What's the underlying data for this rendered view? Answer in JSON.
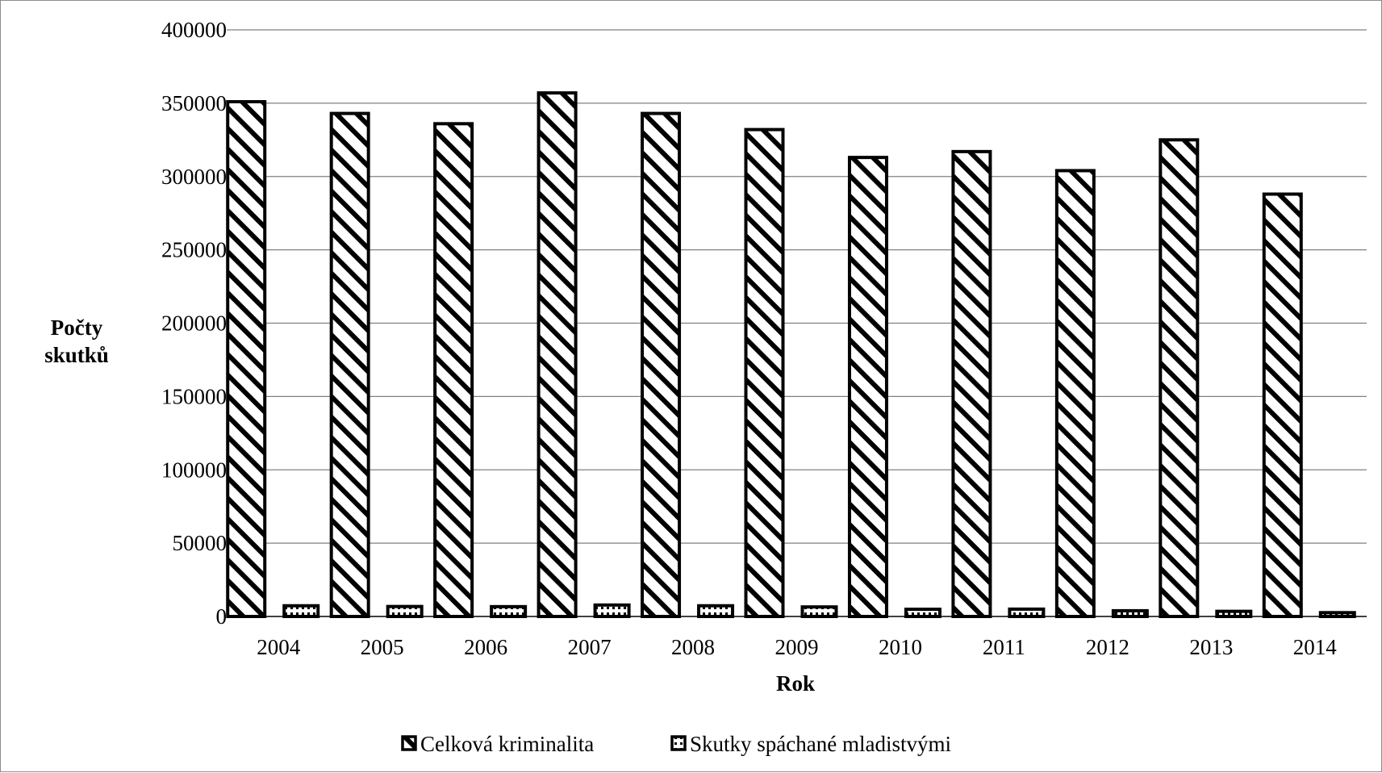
{
  "chart_data": {
    "type": "bar",
    "title": "",
    "xlabel": "Rok",
    "ylabel": "Počty skutků",
    "ylim": [
      0,
      400000
    ],
    "yticks": [
      0,
      50000,
      100000,
      150000,
      200000,
      250000,
      300000,
      350000,
      400000
    ],
    "grid": true,
    "legend_position": "bottom",
    "categories": [
      "2004",
      "2005",
      "2006",
      "2007",
      "2008",
      "2009",
      "2010",
      "2011",
      "2012",
      "2013",
      "2014"
    ],
    "series": [
      {
        "name": "Celková kriminalita",
        "pattern": "diagonal-hatch",
        "values": [
          351000,
          343000,
          336000,
          357000,
          343000,
          332000,
          313000,
          317000,
          304000,
          325000,
          288000
        ]
      },
      {
        "name": "Skutky spáchané mladistvými",
        "pattern": "dotted",
        "values": [
          7300,
          6800,
          6700,
          7800,
          7300,
          6500,
          4900,
          5000,
          3900,
          3500,
          2600
        ]
      }
    ],
    "colors": {
      "fill": "#ffffff",
      "stroke": "#000000",
      "grid": "#808080"
    }
  }
}
